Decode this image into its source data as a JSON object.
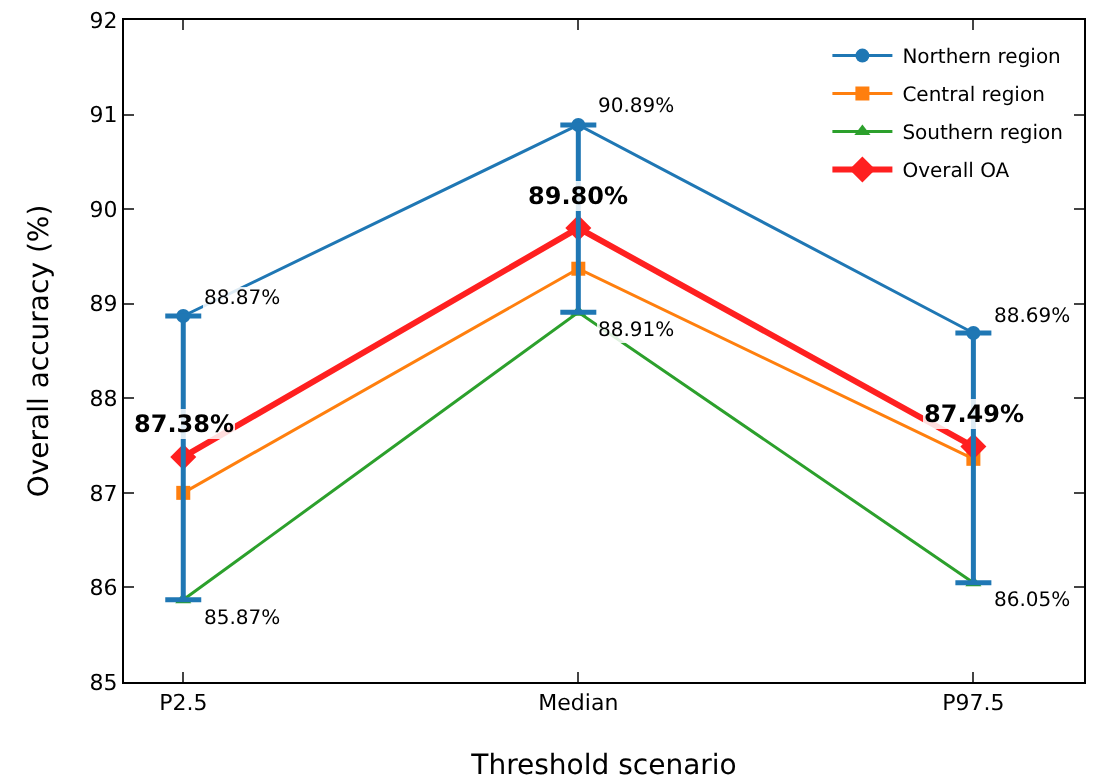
{
  "chart_data": {
    "type": "line",
    "xlabel": "Threshold scenario",
    "ylabel": "Overall accuracy (%)",
    "categories": [
      "P2.5",
      "Median",
      "P97.5"
    ],
    "ylim": [
      85,
      92
    ],
    "yticks": [
      85,
      86,
      87,
      88,
      89,
      90,
      91,
      92
    ],
    "grid": false,
    "legend": "top right",
    "series": [
      {
        "name": "Northern region",
        "color": "#1f77b4",
        "marker": "circle",
        "values": [
          88.87,
          90.89,
          88.69
        ],
        "value_labels": [
          "88.87%",
          "90.89%",
          "88.69%"
        ],
        "errors": [
          [
            85.87,
            88.87
          ],
          [
            88.91,
            90.89
          ],
          [
            86.05,
            88.69
          ]
        ]
      },
      {
        "name": "Central region",
        "color": "#ff7f0e",
        "marker": "square",
        "values": [
          87.0,
          89.37,
          87.36
        ]
      },
      {
        "name": "Southern region",
        "color": "#2ca02c",
        "marker": "triangle",
        "values": [
          85.87,
          88.91,
          86.05
        ],
        "value_labels": [
          "85.87%",
          "88.91%",
          "86.05%"
        ]
      },
      {
        "name": "Overall OA",
        "color": "#ff2020",
        "marker": "diamond",
        "values": [
          87.38,
          89.8,
          87.49
        ],
        "value_labels": [
          "87.38%",
          "89.80%",
          "87.49%"
        ]
      }
    ]
  }
}
